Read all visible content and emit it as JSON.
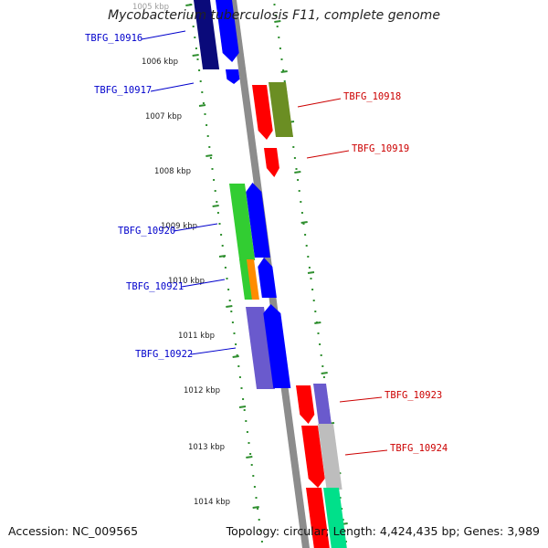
{
  "title": "Mycobacterium tuberculosis F11, complete genome",
  "footer": {
    "accession": "Accession: NC_009565",
    "summary": "Topology: circular; Length: 4,424,435 bp; Genes: 3,989"
  },
  "colors": {
    "backbone": "#8c8c8c",
    "ruler_dots": "#2f8f2f",
    "label_left": "#0000cc",
    "label_right": "#cc0000",
    "tick_text": "#222222"
  },
  "ticks": [
    "1005 kbp",
    "1006 kbp",
    "1007 kbp",
    "1008 kbp",
    "1009 kbp",
    "1010 kbp",
    "1011 kbp",
    "1012 kbp",
    "1013 kbp",
    "1014 kbp"
  ],
  "genes": [
    {
      "name": "TBFG_10916",
      "side": "left"
    },
    {
      "name": "TBFG_10917",
      "side": "left"
    },
    {
      "name": "TBFG_10918",
      "side": "right"
    },
    {
      "name": "TBFG_10919",
      "side": "right"
    },
    {
      "name": "TBFG_10920",
      "side": "left"
    },
    {
      "name": "TBFG_10921",
      "side": "left"
    },
    {
      "name": "TBFG_10922",
      "side": "left"
    },
    {
      "name": "TBFG_10923",
      "side": "right"
    },
    {
      "name": "TBFG_10924",
      "side": "right"
    }
  ],
  "features": [
    {
      "name": "feature-navy-a",
      "color": "#0a0a7a"
    },
    {
      "name": "feature-blue-a",
      "color": "#0000ff"
    },
    {
      "name": "feature-blue-b",
      "color": "#0000ff"
    },
    {
      "name": "feature-red-a",
      "color": "#ff0000"
    },
    {
      "name": "feature-olive-a",
      "color": "#6b8e23"
    },
    {
      "name": "feature-red-b",
      "color": "#ff0000"
    },
    {
      "name": "feature-green-a",
      "color": "#32cd32"
    },
    {
      "name": "feature-blue-c",
      "color": "#0000ff"
    },
    {
      "name": "feature-green-b",
      "color": "#32cd32"
    },
    {
      "name": "feature-orange-a",
      "color": "#ff8c00"
    },
    {
      "name": "feature-blue-d",
      "color": "#0000ff"
    },
    {
      "name": "feature-slate-a",
      "color": "#6a5acd"
    },
    {
      "name": "feature-blue-e",
      "color": "#0000ff"
    },
    {
      "name": "feature-red-c",
      "color": "#ff0000"
    },
    {
      "name": "feature-slate-b",
      "color": "#6a5acd"
    },
    {
      "name": "feature-red-d",
      "color": "#ff0000"
    },
    {
      "name": "feature-silver-a",
      "color": "#bdbdbd"
    },
    {
      "name": "feature-red-e",
      "color": "#ff0000"
    },
    {
      "name": "feature-mint-a",
      "color": "#00e08a"
    }
  ]
}
